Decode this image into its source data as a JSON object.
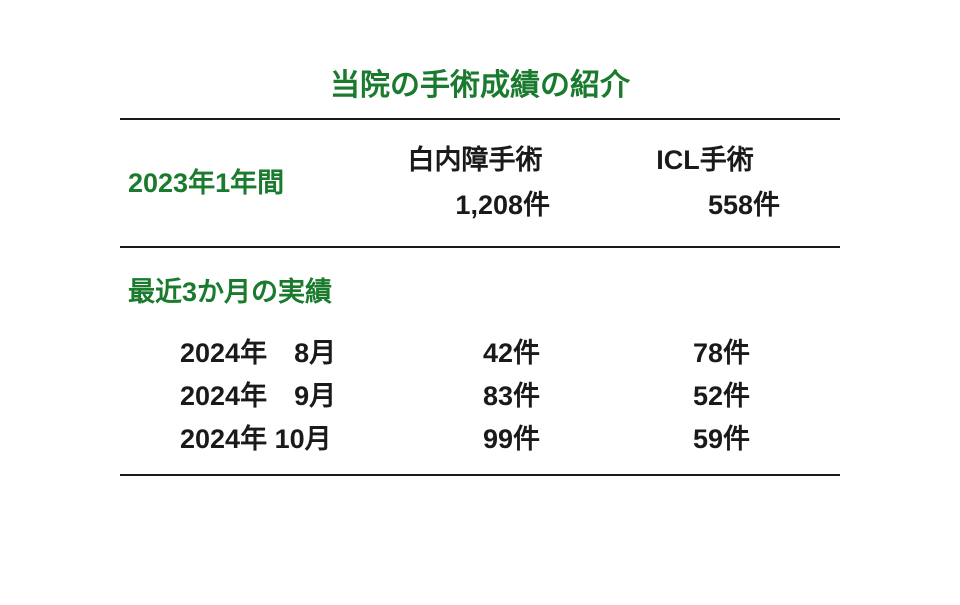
{
  "title": "当院の手術成績の紹介",
  "annual": {
    "label": "2023年1年間",
    "col1_header": "白内障手術",
    "col1_value": "1,208件",
    "col2_header": "ICL手術",
    "col2_value": "558件"
  },
  "recent": {
    "label": "最近3か月の実績",
    "rows": [
      {
        "month": "2024年　8月",
        "v1": "42件",
        "v2": "78件"
      },
      {
        "month": "2024年　9月",
        "v1": "83件",
        "v2": "52件"
      },
      {
        "month": "2024年 10月",
        "v1": "99件",
        "v2": "59件"
      }
    ]
  },
  "colors": {
    "accent": "#1a7a2e",
    "text": "#1a1a1a",
    "rule": "#1a1a1a",
    "background": "#ffffff"
  }
}
